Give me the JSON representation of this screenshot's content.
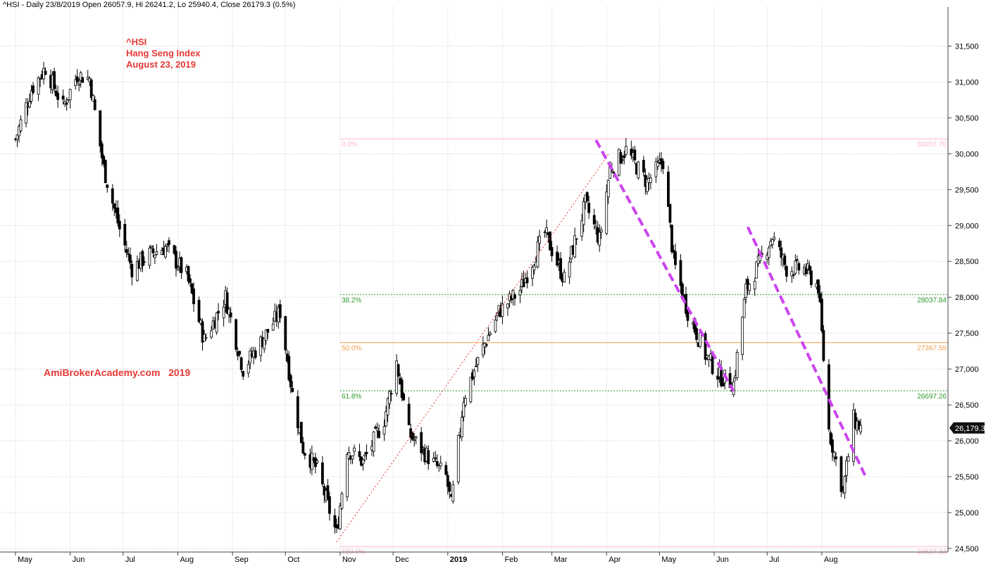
{
  "header": "^HSI - Daily 23/8/2019 Open 26057.9, Hi 26241.2, Lo 25940.4, Close 26179.3 (0.5%)",
  "annotations": {
    "symbol": "^HSI",
    "name": "Hang Seng Index",
    "date": "August 23, 2019",
    "watermark": "AmiBrokerAcademy.com   2019"
  },
  "colors": {
    "candle": "#000000",
    "grid": "#c8c8c8",
    "fib_0": "#ffb6c8",
    "fib_382": "#2e9b2e",
    "fib_50": "#f0a050",
    "fib_618": "#2e9b2e",
    "fib_100": "#ffb6c8",
    "trendline": "#cc44ee",
    "swing": "#e53935",
    "text_red": "#e53935"
  },
  "chart_data": {
    "type": "candlestick",
    "y_axis": {
      "min": 24450,
      "max": 31750,
      "ticks": [
        "24,500",
        "25,000",
        "25,500",
        "26,000",
        "26,500",
        "27,000",
        "27,500",
        "28,000",
        "28,500",
        "29,000",
        "29,500",
        "30,000",
        "30,500",
        "31,000",
        "31,500"
      ],
      "tick_values": [
        24500,
        25000,
        25500,
        26000,
        26500,
        27000,
        27500,
        28000,
        28500,
        29000,
        29500,
        30000,
        30500,
        31000,
        31500
      ]
    },
    "x_axis": {
      "start_date": "2018-05-01",
      "end_date": "2019-08-23",
      "months": [
        {
          "label": "May",
          "date": "2018-05-01"
        },
        {
          "label": "Jun",
          "date": "2018-06-01"
        },
        {
          "label": "Jul",
          "date": "2018-07-01"
        },
        {
          "label": "Aug",
          "date": "2018-08-01"
        },
        {
          "label": "Sep",
          "date": "2018-09-01"
        },
        {
          "label": "Oct",
          "date": "2018-10-01"
        },
        {
          "label": "Nov",
          "date": "2018-11-01"
        },
        {
          "label": "Dec",
          "date": "2018-12-01"
        },
        {
          "label": "2019",
          "date": "2019-01-01",
          "bold": true
        },
        {
          "label": "Feb",
          "date": "2019-02-01"
        },
        {
          "label": "Mar",
          "date": "2019-03-01"
        },
        {
          "label": "Apr",
          "date": "2019-04-01"
        },
        {
          "label": "May",
          "date": "2019-05-01"
        },
        {
          "label": "Jun",
          "date": "2019-06-01"
        },
        {
          "label": "Jul",
          "date": "2019-07-01"
        },
        {
          "label": "Aug",
          "date": "2019-08-01"
        }
      ]
    },
    "closes": [
      {
        "date": "2018-05-01",
        "close": 30200
      },
      {
        "date": "2018-05-10",
        "close": 30900
      },
      {
        "date": "2018-05-18",
        "close": 31200
      },
      {
        "date": "2018-05-28",
        "close": 30650
      },
      {
        "date": "2018-06-05",
        "close": 31100
      },
      {
        "date": "2018-06-12",
        "close": 31050
      },
      {
        "date": "2018-06-20",
        "close": 29800
      },
      {
        "date": "2018-06-29",
        "close": 28950
      },
      {
        "date": "2018-07-06",
        "close": 28400
      },
      {
        "date": "2018-07-16",
        "close": 28600
      },
      {
        "date": "2018-07-25",
        "close": 28700
      },
      {
        "date": "2018-08-06",
        "close": 28300
      },
      {
        "date": "2018-08-16",
        "close": 27400
      },
      {
        "date": "2018-08-28",
        "close": 28000
      },
      {
        "date": "2018-09-07",
        "close": 27000
      },
      {
        "date": "2018-09-19",
        "close": 27450
      },
      {
        "date": "2018-09-28",
        "close": 27800
      },
      {
        "date": "2018-10-05",
        "close": 26650
      },
      {
        "date": "2018-10-11",
        "close": 25900
      },
      {
        "date": "2018-10-19",
        "close": 25600
      },
      {
        "date": "2018-10-30",
        "close": 24700
      },
      {
        "date": "2018-11-05",
        "close": 25900
      },
      {
        "date": "2018-11-14",
        "close": 25700
      },
      {
        "date": "2018-11-26",
        "close": 26300
      },
      {
        "date": "2018-12-03",
        "close": 27100
      },
      {
        "date": "2018-12-10",
        "close": 26100
      },
      {
        "date": "2018-12-20",
        "close": 25800
      },
      {
        "date": "2018-12-31",
        "close": 25500
      },
      {
        "date": "2019-01-03",
        "close": 25100
      },
      {
        "date": "2019-01-10",
        "close": 26600
      },
      {
        "date": "2019-01-21",
        "close": 27300
      },
      {
        "date": "2019-01-30",
        "close": 27800
      },
      {
        "date": "2019-02-11",
        "close": 28100
      },
      {
        "date": "2019-02-25",
        "close": 28900
      },
      {
        "date": "2019-03-08",
        "close": 28250
      },
      {
        "date": "2019-03-20",
        "close": 29300
      },
      {
        "date": "2019-03-28",
        "close": 28800
      },
      {
        "date": "2019-04-03",
        "close": 29800
      },
      {
        "date": "2019-04-12",
        "close": 30050
      },
      {
        "date": "2019-04-24",
        "close": 29600
      },
      {
        "date": "2019-05-03",
        "close": 29900
      },
      {
        "date": "2019-05-09",
        "close": 28500
      },
      {
        "date": "2019-05-17",
        "close": 27800
      },
      {
        "date": "2019-05-27",
        "close": 27200
      },
      {
        "date": "2019-06-04",
        "close": 26900
      },
      {
        "date": "2019-06-12",
        "close": 26800
      },
      {
        "date": "2019-06-19",
        "close": 28100
      },
      {
        "date": "2019-06-28",
        "close": 28550
      },
      {
        "date": "2019-07-04",
        "close": 28850
      },
      {
        "date": "2019-07-12",
        "close": 28400
      },
      {
        "date": "2019-07-22",
        "close": 28400
      },
      {
        "date": "2019-07-30",
        "close": 28150
      },
      {
        "date": "2019-08-05",
        "close": 26150
      },
      {
        "date": "2019-08-13",
        "close": 25300
      },
      {
        "date": "2019-08-19",
        "close": 26300
      },
      {
        "date": "2019-08-23",
        "close": 26179.3
      }
    ],
    "last_price_label": "26,179.3",
    "last_price": 26179.3,
    "fibonacci": {
      "start_date": "2018-11-01",
      "levels": [
        {
          "pct": "0.0%",
          "value": 30207.7,
          "value_label": "30207.70",
          "key": "fib_0"
        },
        {
          "pct": "38.2%",
          "value": 28037.84,
          "value_label": "28037.84",
          "key": "fib_382"
        },
        {
          "pct": "50.0%",
          "value": 27367.55,
          "value_label": "27367.55",
          "key": "fib_50"
        },
        {
          "pct": "61.8%",
          "value": 26697.26,
          "value_label": "26697.26",
          "key": "fib_618"
        },
        {
          "pct": "100.0%",
          "value": 24527.34,
          "value_label": "24527.34",
          "key": "fib_100"
        }
      ]
    },
    "swing_line": {
      "from": {
        "date": "2018-10-30",
        "value": 24590
      },
      "to": {
        "date": "2019-04-02",
        "value": 29990
      }
    },
    "trendlines": [
      {
        "from": {
          "date": "2019-03-26",
          "value": 30190
        },
        "to": {
          "date": "2019-06-12",
          "value": 26690
        }
      },
      {
        "from": {
          "date": "2019-06-20",
          "value": 28980
        },
        "to": {
          "date": "2019-08-26",
          "value": 25490
        }
      }
    ]
  }
}
